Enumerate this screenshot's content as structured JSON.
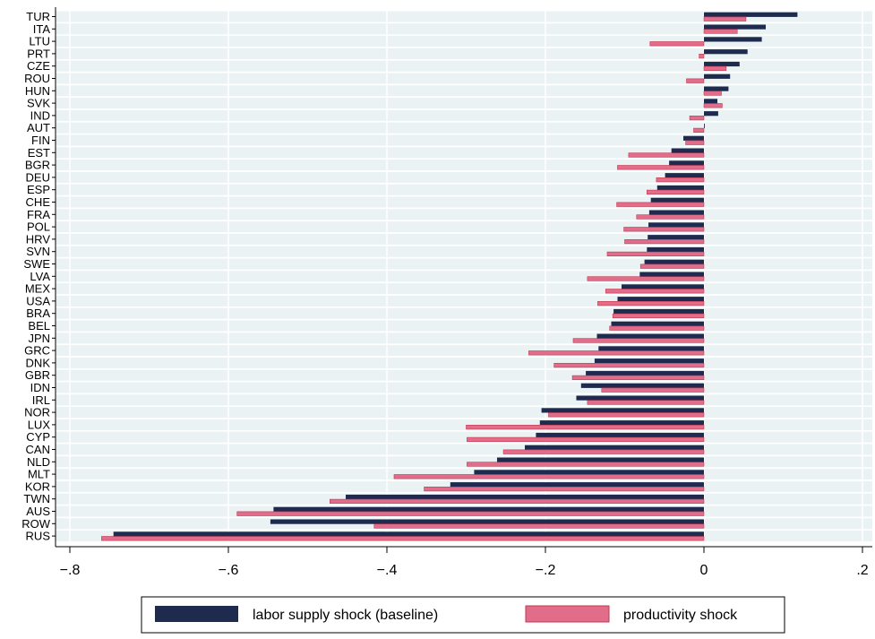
{
  "chart_data": {
    "type": "bar",
    "orientation": "horizontal",
    "categories": [
      "TUR",
      "ITA",
      "LTU",
      "PRT",
      "CZE",
      "ROU",
      "HUN",
      "SVK",
      "IND",
      "AUT",
      "FIN",
      "EST",
      "BGR",
      "DEU",
      "ESP",
      "CHE",
      "FRA",
      "POL",
      "HRV",
      "SVN",
      "SWE",
      "LVA",
      "MEX",
      "USA",
      "BRA",
      "BEL",
      "JPN",
      "GRC",
      "DNK",
      "GBR",
      "IDN",
      "IRL",
      "NOR",
      "LUX",
      "CYP",
      "CAN",
      "NLD",
      "MLT",
      "KOR",
      "TWN",
      "AUS",
      "ROW",
      "RUS"
    ],
    "series": [
      {
        "name": "labor supply shock (baseline)",
        "color": "#1f2a4f",
        "values": [
          0.118,
          0.078,
          0.073,
          0.055,
          0.045,
          0.033,
          0.031,
          0.017,
          0.018,
          0.001,
          -0.026,
          -0.041,
          -0.044,
          -0.049,
          -0.059,
          -0.067,
          -0.069,
          -0.07,
          -0.071,
          -0.072,
          -0.075,
          -0.081,
          -0.104,
          -0.109,
          -0.114,
          -0.117,
          -0.135,
          -0.133,
          -0.138,
          -0.149,
          -0.155,
          -0.161,
          -0.205,
          -0.207,
          -0.212,
          -0.226,
          -0.261,
          -0.29,
          -0.32,
          -0.452,
          -0.543,
          -0.547,
          -0.745
        ]
      },
      {
        "name": "productivity shock",
        "color": "#e16d8a",
        "values": [
          0.053,
          0.042,
          -0.068,
          -0.006,
          0.028,
          -0.022,
          0.022,
          0.023,
          -0.018,
          -0.013,
          -0.023,
          -0.095,
          -0.109,
          -0.06,
          -0.072,
          -0.11,
          -0.085,
          -0.101,
          -0.1,
          -0.122,
          -0.08,
          -0.147,
          -0.124,
          -0.134,
          -0.115,
          -0.119,
          -0.165,
          -0.221,
          -0.189,
          -0.166,
          -0.129,
          -0.147,
          -0.196,
          -0.3,
          -0.299,
          -0.253,
          -0.299,
          -0.391,
          -0.353,
          -0.472,
          -0.589,
          -0.416,
          -0.76
        ]
      }
    ],
    "x_ticks": [
      -0.8,
      -0.6,
      -0.4,
      -0.2,
      0,
      0.2
    ],
    "x_tick_labels": [
      "−.8",
      "−.6",
      "−.4",
      "−.2",
      "0",
      ".2"
    ],
    "xlim": [
      -0.8,
      0.2
    ],
    "title": "",
    "xlabel": "",
    "ylabel": "",
    "grid": "vertical",
    "legend_position": "bottom"
  },
  "legend": {
    "items": [
      {
        "label": "labor supply shock (baseline)"
      },
      {
        "label": "productivity shock"
      }
    ]
  }
}
